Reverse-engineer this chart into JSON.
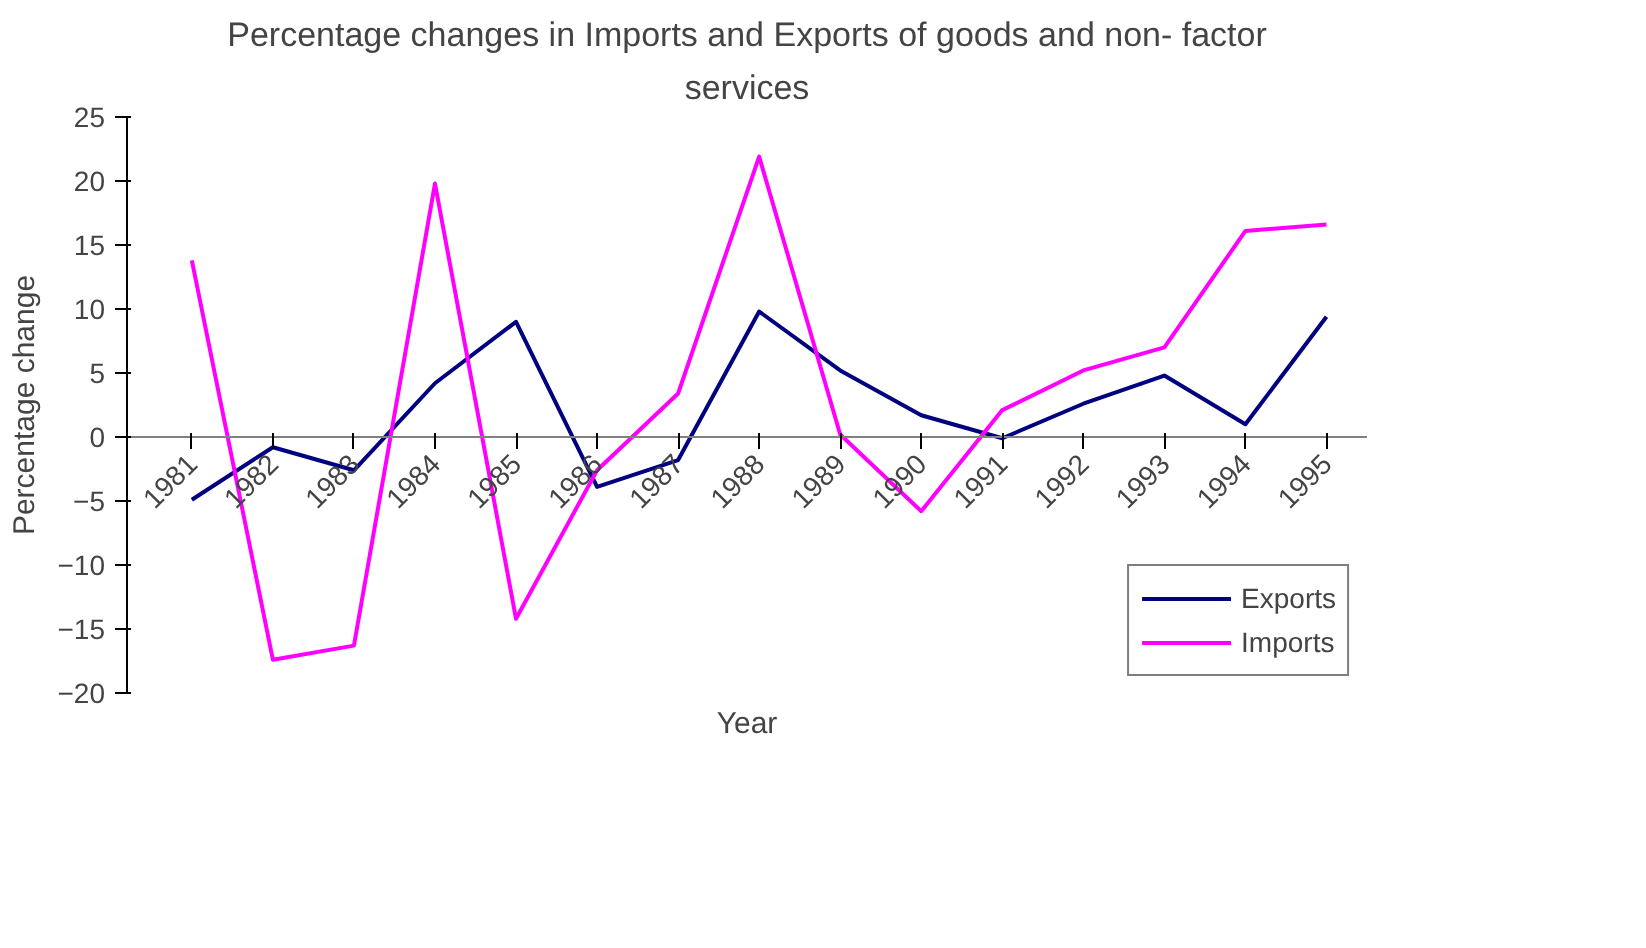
{
  "chart_data": {
    "type": "line",
    "title": "Percentage changes in Imports and Exports of goods and non- factor services",
    "xlabel": "Year",
    "ylabel": "Percentage change",
    "categories": [
      "1981",
      "1982",
      "1983",
      "1984",
      "1985",
      "1986",
      "1987",
      "1988",
      "1989",
      "1990",
      "1991",
      "1992",
      "1993",
      "1994",
      "1995"
    ],
    "series": [
      {
        "name": "Exports",
        "color": "#000080",
        "values": [
          -4.9,
          -0.8,
          -2.6,
          4.2,
          9.0,
          -3.9,
          -1.8,
          9.8,
          5.2,
          1.7,
          -0.1,
          2.6,
          4.8,
          1.0,
          9.4
        ]
      },
      {
        "name": "Imports",
        "color": "#ff00ff",
        "values": [
          13.8,
          -17.4,
          -16.3,
          19.8,
          -14.2,
          -2.6,
          3.4,
          21.9,
          0.2,
          -5.8,
          2.1,
          5.2,
          7.0,
          16.1,
          16.6
        ]
      }
    ],
    "ylim": [
      -20,
      25
    ],
    "yticks": [
      -20,
      -15,
      -10,
      -5,
      0,
      5,
      10,
      15,
      20,
      25
    ],
    "grid": false,
    "legend": "bottom right",
    "marker": "none",
    "line_style": "solid"
  }
}
